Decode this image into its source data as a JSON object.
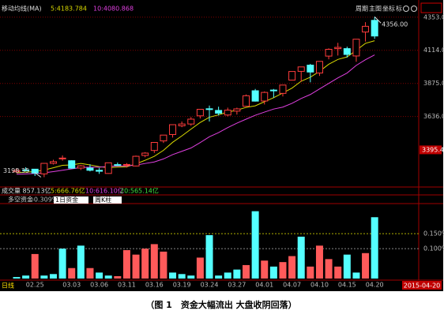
{
  "chart_data": [
    {
      "type": "candlestick",
      "title": "移动均线(MA)",
      "categories": [
        null,
        null,
        "02.25",
        null,
        null,
        null,
        "03.03",
        null,
        null,
        "03.06",
        null,
        null,
        "03.11",
        null,
        null,
        "03.16",
        null,
        null,
        "03.19",
        null,
        null,
        "03.24",
        null,
        null,
        "03.27",
        null,
        null,
        "04.01",
        null,
        null,
        "04.07",
        null,
        null,
        "04.10",
        null,
        null,
        "04.15",
        null,
        null,
        "04.20"
      ],
      "open": [
        3237,
        3251,
        3256,
        3222,
        3298,
        3332,
        3317,
        3264,
        3264,
        3248,
        3225,
        3289,
        3290,
        3279,
        3355,
        3391,
        3460,
        3506,
        3569,
        3582,
        3641,
        3692,
        3680,
        3647,
        3675,
        3710,
        3822,
        3748,
        3827,
        3803,
        3899,
        3962,
        4007,
        3950,
        4072,
        4126,
        4126,
        4073,
        4246,
        4330
      ],
      "high": [
        3262,
        3270,
        3257,
        3300,
        3324,
        3355,
        3320,
        3286,
        3291,
        3265,
        3302,
        3304,
        3300,
        3354,
        3379,
        3449,
        3502,
        3577,
        3600,
        3632,
        3688,
        3715,
        3707,
        3700,
        3700,
        3795,
        3835,
        3817,
        3835,
        3864,
        3961,
        3994,
        4016,
        4034,
        4128,
        4168,
        4140,
        4194,
        4317,
        4356
      ],
      "low": [
        3228,
        3240,
        3207,
        3198.35,
        3290,
        3317,
        3260,
        3250,
        3240,
        3222,
        3223,
        3279,
        3268,
        3276,
        3342,
        3373,
        3445,
        3484,
        3559,
        3569,
        3622,
        3600,
        3644,
        3637,
        3650,
        3710,
        3744,
        3723,
        3772,
        3781,
        3898,
        3887,
        3883,
        3929,
        4049,
        4076,
        4062,
        4031,
        4177,
        4197
      ],
      "close": [
        3247,
        3247,
        3228,
        3298,
        3310,
        3336,
        3263,
        3280,
        3248,
        3241,
        3302,
        3286,
        3290,
        3349,
        3372,
        3449,
        3502,
        3577,
        3582,
        3617,
        3688,
        3691,
        3660,
        3682,
        3691,
        3786,
        3747,
        3810,
        3825,
        3863,
        3961,
        3994,
        3957,
        4034,
        4121,
        4135,
        4084,
        4194,
        4287,
        4217
      ],
      "up_color": "#ff3c3c",
      "down_color": "#54ffff",
      "series": [
        {
          "label": "5:4183.784",
          "color": "#d8d800",
          "values": [
            3230,
            3235,
            3238,
            3250,
            3266,
            3284,
            3287,
            3297,
            3287,
            3274,
            3267,
            3271,
            3273,
            3294,
            3320,
            3349,
            3392,
            3450,
            3496,
            3545,
            3593,
            3631,
            3648,
            3668,
            3682,
            3702,
            3713,
            3743,
            3772,
            3806,
            3841,
            3891,
            3920,
            3962,
            4013,
            4048,
            4066,
            4114,
            4164,
            4183
          ]
        },
        {
          "label": "10:4080.868",
          "color": "#e040e0",
          "values": [
            3220,
            3222,
            3225,
            3230,
            3238,
            3248,
            3258,
            3268,
            3270,
            3270,
            3276,
            3279,
            3280,
            3285,
            3297,
            3308,
            3330,
            3361,
            3385,
            3409,
            3448,
            3490,
            3520,
            3556,
            3588,
            3617,
            3645,
            3668,
            3690,
            3704,
            3731,
            3766,
            3795,
            3835,
            3875,
            3915,
            3950,
            4005,
            4046,
            4081
          ]
        }
      ],
      "ylim": [
        3150,
        4420
      ],
      "yticks": [
        {
          "value": 4353,
          "label": "4353.0"
        },
        {
          "value": 4114,
          "label": "4114.0"
        },
        {
          "value": 3875,
          "label": "3875.0"
        },
        {
          "value": 3636,
          "label": "3636.0"
        }
      ],
      "cursor_value": 3395.4,
      "high_label": {
        "value": 4356,
        "label": "4356.00"
      },
      "low_label": "3198.35",
      "grid": true
    },
    {
      "type": "bar",
      "title": "多空资金",
      "value_text": "-0.309%",
      "values": [
        0.005,
        0.01,
        0.082,
        0.01,
        0.015,
        0.1,
        0.035,
        0.11,
        0.035,
        0.02,
        0.01,
        0.008,
        0.095,
        0.08,
        0.1,
        0.115,
        0.09,
        0.02,
        0.015,
        0.01,
        0.07,
        0.145,
        0.01,
        0.02,
        0.03,
        0.045,
        0.225,
        0.06,
        0.04,
        0.055,
        0.075,
        0.14,
        0.04,
        0.11,
        0.065,
        0.04,
        0.08,
        0.02,
        0.085,
        0.205
      ],
      "colors": [
        "#54ffff",
        "#54ffff",
        "#ff5a5a",
        "#54ffff",
        "#54ffff",
        "#54ffff",
        "#ff5a5a",
        "#54ffff",
        "#ff5a5a",
        "#54ffff",
        "#54ffff",
        "#ff5a5a",
        "#ff5a5a",
        "#ff5a5a",
        "#ff5a5a",
        "#ff5a5a",
        "#ff5a5a",
        "#54ffff",
        "#54ffff",
        "#54ffff",
        "#ff5a5a",
        "#54ffff",
        "#54ffff",
        "#54ffff",
        "#54ffff",
        "#ff5a5a",
        "#54ffff",
        "#ff5a5a",
        "#54ffff",
        "#ff5a5a",
        "#ff5a5a",
        "#54ffff",
        "#ff5a5a",
        "#ff5a5a",
        "#ff5a5a",
        "#ff5a5a",
        "#54ffff",
        "#54ffff",
        "#ff5a5a",
        "#54ffff"
      ],
      "ylim": [
        0,
        0.24
      ],
      "yticks": [
        {
          "value": 0.15,
          "label": "0.150%"
        },
        {
          "value": 0.1,
          "label": "0.100%"
        }
      ]
    }
  ],
  "volume_texts": [
    "成交量 857.13亿",
    "5:666.76亿",
    "10:616.10亿",
    "20:565.14亿"
  ],
  "toolbar": [
    "周期",
    "主图",
    "坐标",
    "标"
  ],
  "dropdowns": [
    "1日资金",
    "周K柱"
  ],
  "period": "日线",
  "date_box": "2015-04-20",
  "caption": "（图 1　资金大幅流出 大盘收阴回落）"
}
